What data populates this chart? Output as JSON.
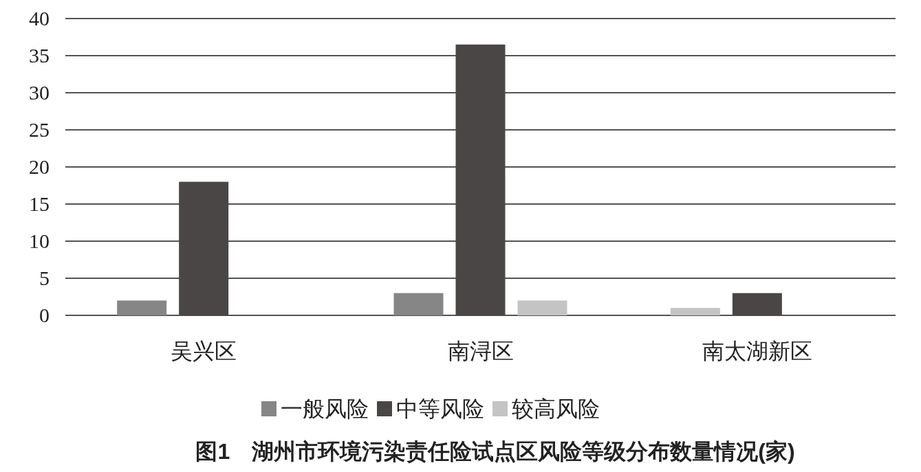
{
  "chart_data": {
    "type": "bar",
    "title": "图1　湖州市环境污染责任险试点区风险等级分布数量情况(家)",
    "categories": [
      "吴兴区",
      "南浔区",
      "南太湖新区"
    ],
    "series": [
      {
        "name": "一般风险",
        "color": "#868686",
        "colors": [
          "#868686",
          "#868686",
          "#c4c4c4"
        ],
        "values": [
          2,
          3,
          1
        ]
      },
      {
        "name": "中等风险",
        "color": "#4a4646",
        "values": [
          18,
          36.5,
          3
        ]
      },
      {
        "name": "较高风险",
        "color": "#c4c4c4",
        "values": [
          0,
          2,
          0
        ]
      }
    ],
    "ylim": [
      0,
      40
    ],
    "yticks": [
      0,
      5,
      10,
      15,
      20,
      25,
      30,
      35,
      40
    ],
    "grid": "y",
    "legend": "bottom"
  }
}
